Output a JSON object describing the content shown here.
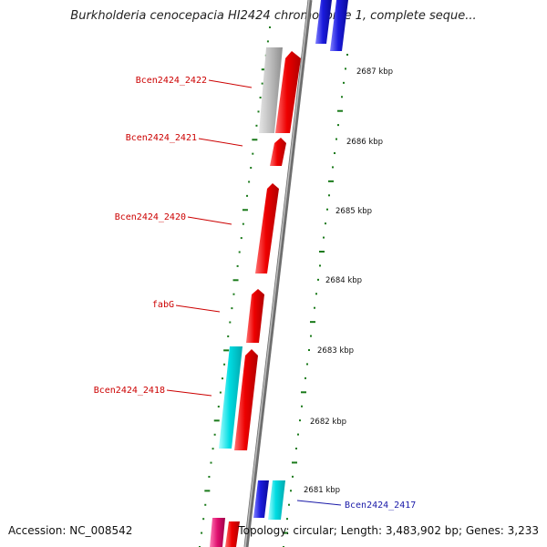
{
  "title": "Burkholderia cenocepacia HI2424 chromosome 1, complete seque...",
  "accession": "Accession: NC_008542",
  "topology": "Topology: circular; Length: 3,483,902 bp; Genes: 3,233",
  "colors": {
    "backbone": "#8c8c8c",
    "tick": "#1a7a1a",
    "gene_red": "#ee0000",
    "gene_blue": "#1b1bdd",
    "gene_cyan": "#00d9df",
    "gene_gray": "#b4b4b4",
    "gene_magenta": "#e0106f",
    "label_red": "#cc0000",
    "label_blue": "#1a1aa8"
  },
  "kbp_labels": [
    "2687 kbp",
    "2686 kbp",
    "2685 kbp",
    "2684 kbp",
    "2683 kbp",
    "2682 kbp",
    "2681 kbp"
  ],
  "gene_labels": [
    {
      "text": "Bcen2424_2422",
      "color": "red"
    },
    {
      "text": "Bcen2424_2421",
      "color": "red"
    },
    {
      "text": "Bcen2424_2420",
      "color": "red"
    },
    {
      "text": "fabG",
      "color": "red"
    },
    {
      "text": "Bcen2424_2418",
      "color": "red"
    },
    {
      "text": "Bcen2424_2417",
      "color": "blue"
    }
  ]
}
